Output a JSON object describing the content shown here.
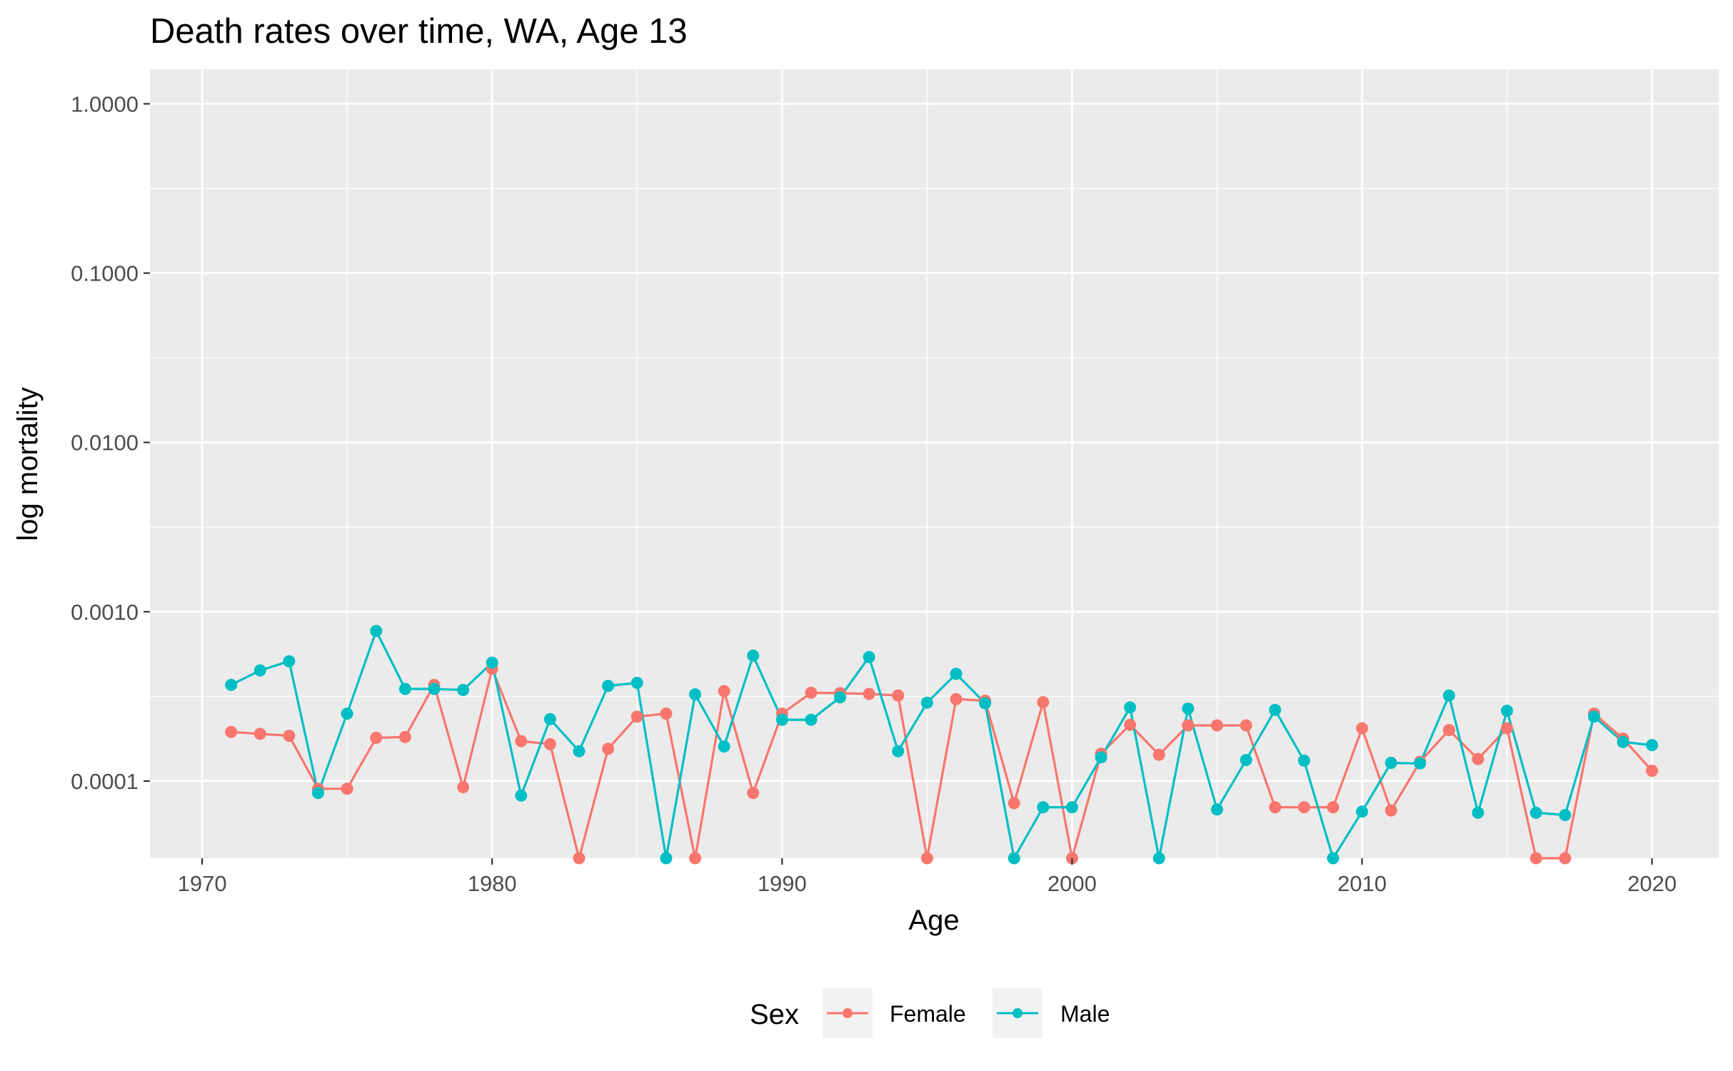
{
  "chart_data": {
    "type": "line",
    "title": "Death rates over time, WA, Age 13",
    "xlabel": "Age",
    "ylabel": "log mortality",
    "x_scale": "linear",
    "y_scale": "log10",
    "xlim": [
      1968.2,
      2022.3
    ],
    "ylim": [
      3.5e-05,
      1.6
    ],
    "x_ticks": [
      1970,
      1980,
      1990,
      2000,
      2010,
      2020
    ],
    "x_tick_labels": [
      "1970",
      "1980",
      "1990",
      "2000",
      "2010",
      "2020"
    ],
    "y_ticks": [
      0.0001,
      0.001,
      0.01,
      0.1,
      1
    ],
    "y_tick_labels": [
      "0.0001",
      "0.0010",
      "0.0100",
      "0.1000",
      "1.0000"
    ],
    "grid": true,
    "panel_background": "#ebebeb",
    "legend": {
      "title": "Sex",
      "position": "bottom"
    },
    "x": [
      1971,
      1972,
      1973,
      1974,
      1975,
      1976,
      1977,
      1978,
      1979,
      1980,
      1981,
      1982,
      1983,
      1984,
      1985,
      1986,
      1987,
      1988,
      1989,
      1990,
      1991,
      1992,
      1993,
      1994,
      1995,
      1996,
      1997,
      1998,
      1999,
      2000,
      2001,
      2002,
      2003,
      2004,
      2005,
      2006,
      2007,
      2008,
      2009,
      2010,
      2011,
      2012,
      2013,
      2014,
      2015,
      2016,
      2017,
      2018,
      2019,
      2020
    ],
    "series": [
      {
        "name": "Female",
        "color": "#f8766d",
        "values": [
          0.000195,
          0.00019,
          0.000185,
          9e-05,
          9e-05,
          0.00018,
          0.000182,
          0.00037,
          9.2e-05,
          0.00046,
          0.000172,
          0.000165,
          3.5e-05,
          0.000155,
          0.00024,
          0.00025,
          3.5e-05,
          0.00034,
          8.5e-05,
          0.00025,
          0.000332,
          0.00033,
          0.000327,
          0.00032,
          3.5e-05,
          0.000305,
          0.000298,
          7.4e-05,
          0.000292,
          3.5e-05,
          0.000145,
          0.000215,
          0.000143,
          0.000213,
          0.000213,
          0.000213,
          7e-05,
          7e-05,
          7e-05,
          0.000205,
          6.7e-05,
          0.00013,
          0.0002,
          0.000135,
          0.000205,
          3.5e-05,
          3.5e-05,
          0.00025,
          0.000178,
          0.000115
        ]
      },
      {
        "name": "Male",
        "color": "#00bfc4",
        "values": [
          0.00037,
          0.00045,
          0.00051,
          8.5e-05,
          0.00025,
          0.00077,
          0.00035,
          0.00035,
          0.000345,
          0.0005,
          8.2e-05,
          0.000232,
          0.00015,
          0.000365,
          0.00038,
          3.5e-05,
          0.000325,
          0.00016,
          0.00055,
          0.00023,
          0.00023,
          0.000312,
          0.00054,
          0.00015,
          0.00029,
          0.00043,
          0.000288,
          3.5e-05,
          7e-05,
          7e-05,
          0.000138,
          0.000272,
          3.5e-05,
          0.000268,
          6.8e-05,
          0.000133,
          0.000263,
          0.000132,
          3.5e-05,
          6.6e-05,
          0.000128,
          0.000127,
          0.00032,
          6.5e-05,
          0.00026,
          6.5e-05,
          6.3e-05,
          0.00024,
          0.00017,
          0.000163
        ]
      }
    ]
  }
}
